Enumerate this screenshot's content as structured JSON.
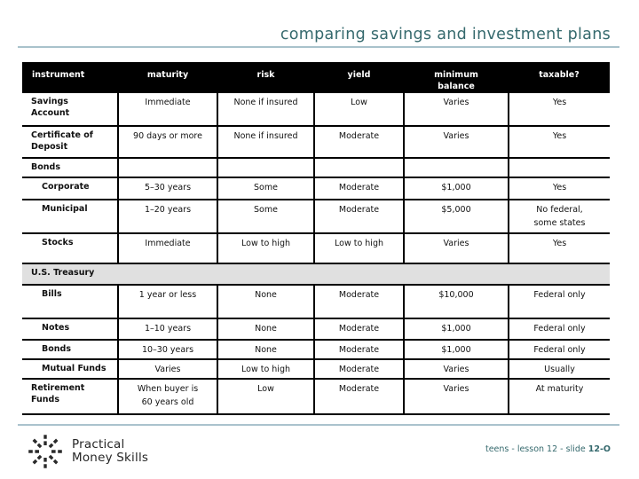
{
  "slide": {
    "title": "comparing savings and investment plans",
    "footer": {
      "logo_icon": "starburst-logo-icon",
      "logo_line1": "Practical",
      "logo_line2": "Money Skills",
      "slide_ref_prefix": "teens - lesson 12 - slide ",
      "slide_ref_bold": "12-O"
    },
    "colors": {
      "accent_teal": "#35696d",
      "divider_line": "#aac3cd",
      "header_bg": "#000000",
      "header_text": "#ffffff",
      "section_row_bg": "#e0e0e0",
      "table_border": "#000000"
    }
  },
  "table": {
    "headers": [
      "instrument",
      "maturity",
      "risk",
      "yield",
      "minimum\nbalance",
      "taxable?"
    ],
    "rows": [
      {
        "label": "Savings\nAccount",
        "indent": false,
        "section": null,
        "cells": [
          "Immediate",
          "None if insured",
          "Low",
          "Varies",
          "Yes"
        ]
      },
      {
        "label": "Certificate of\nDeposit",
        "indent": false,
        "section": null,
        "cells": [
          "90 days or more",
          "None if insured",
          "Moderate",
          "Varies",
          "Yes"
        ]
      },
      {
        "label": "Bonds",
        "indent": false,
        "section": "cells",
        "cells": [
          "",
          "",
          "",
          "",
          ""
        ]
      },
      {
        "label": "Corporate",
        "indent": true,
        "section": null,
        "cells": [
          "5–30 years",
          "Some",
          "Moderate",
          "$1,000",
          "Yes"
        ]
      },
      {
        "label": "Municipal",
        "indent": true,
        "section": null,
        "cells": [
          "1–20 years",
          "Some",
          "Moderate",
          "$5,000",
          "No federal,\nsome states"
        ]
      },
      {
        "label": "Stocks",
        "indent": true,
        "section": null,
        "cells": [
          "Immediate",
          "Low to high",
          "Low to high",
          "Varies",
          "Yes"
        ]
      },
      {
        "label": "U.S. Treasury",
        "indent": false,
        "section": "full",
        "cells": []
      },
      {
        "label": "Bills",
        "indent": true,
        "section": null,
        "cells": [
          "1 year or less",
          "None",
          "Moderate",
          "$10,000",
          "Federal only"
        ]
      },
      {
        "label": "Notes",
        "indent": true,
        "section": null,
        "cells": [
          "1–10 years",
          "None",
          "Moderate",
          "$1,000",
          "Federal only"
        ]
      },
      {
        "label": "Bonds",
        "indent": true,
        "section": null,
        "cells": [
          "10–30 years",
          "None",
          "Moderate",
          "$1,000",
          "Federal only"
        ]
      },
      {
        "label": "Mutual Funds",
        "indent": true,
        "section": null,
        "cells": [
          "Varies",
          "Low to high",
          "Moderate",
          "Varies",
          "Usually"
        ]
      },
      {
        "label": "Retirement\nFunds",
        "indent": false,
        "section": null,
        "cells": [
          "When buyer is\n60 years old",
          "Low",
          "Moderate",
          "Varies",
          "At maturity"
        ]
      }
    ]
  }
}
